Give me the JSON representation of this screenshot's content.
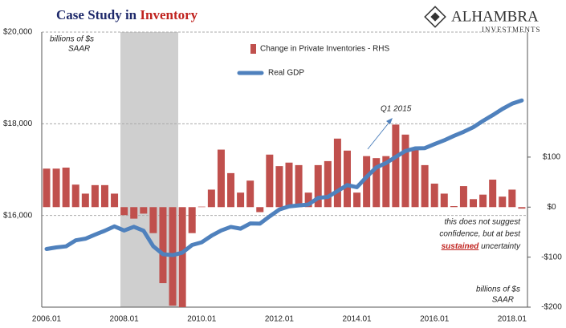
{
  "chart_data": {
    "type": "bar_line",
    "title": {
      "prefix": "Case Study in",
      "highlight": "Inventory"
    },
    "logo": {
      "name": "ALHAMBRA",
      "sub": "INVESTMENTS"
    },
    "unit_left": [
      "billions of $s",
      "SAAR"
    ],
    "unit_right": [
      "billions of $s",
      "SAAR"
    ],
    "note": {
      "lines": [
        "this does not suggest",
        "confidence, but at best"
      ],
      "emph": "sustained",
      "rest": "uncertainty"
    },
    "annotation": "Q1 2015",
    "categories": [
      "2006.01",
      null,
      null,
      null,
      null,
      null,
      null,
      null,
      "2008.01",
      null,
      null,
      null,
      null,
      null,
      null,
      null,
      "2010.01",
      null,
      null,
      null,
      null,
      null,
      null,
      null,
      "2012.01",
      null,
      null,
      null,
      null,
      null,
      null,
      null,
      "2014.01",
      null,
      null,
      null,
      null,
      null,
      null,
      null,
      "2016.01",
      null,
      null,
      null,
      null,
      null,
      null,
      null,
      "2018.01",
      null
    ],
    "series": [
      {
        "name": "Change in Private Inventories - RHS",
        "color": "#c0504d",
        "axis": "y2",
        "kind": "bar",
        "values": [
          77,
          77,
          79,
          45,
          27,
          44,
          44,
          27,
          -16,
          -23,
          -13,
          -52,
          -152,
          -197,
          -200,
          -52,
          1,
          35,
          115,
          68,
          29,
          53,
          -10,
          105,
          82,
          89,
          84,
          29,
          84,
          92,
          137,
          113,
          29,
          102,
          98,
          102,
          165,
          145,
          116,
          84,
          47,
          27,
          2,
          42,
          16,
          25,
          55,
          21,
          35,
          -3
        ]
      },
      {
        "name": "Real GDP",
        "color": "#4f81bd",
        "axis": "y",
        "kind": "line",
        "values": [
          15268,
          15303,
          15326,
          15457,
          15493,
          15582,
          15666,
          15762,
          15671,
          15753,
          15667,
          15328,
          15155,
          15134,
          15189,
          15356,
          15415,
          15557,
          15672,
          15750,
          15712,
          15825,
          15821,
          15980,
          16129,
          16198,
          16220,
          16239,
          16383,
          16404,
          16532,
          16663,
          16616,
          16841,
          17048,
          17143,
          17278,
          17406,
          17463,
          17469,
          17556,
          17639,
          17736,
          17824,
          17925,
          18063,
          18188,
          18323,
          18438,
          18508
        ]
      }
    ],
    "ylim": [
      14000,
      20000
    ],
    "yticks": [
      {
        "value": 16000,
        "label": "$16,000"
      },
      {
        "value": 18000,
        "label": "$18,000"
      },
      {
        "value": 20000,
        "label": "$20,000"
      }
    ],
    "y2lim": [
      -200,
      350
    ],
    "y2ticks": [
      {
        "value": -200,
        "label": "-$200"
      },
      {
        "value": -100,
        "label": "-$100"
      },
      {
        "value": 0,
        "label": "$0"
      },
      {
        "value": 100,
        "label": "$100"
      }
    ],
    "grid": true
  }
}
